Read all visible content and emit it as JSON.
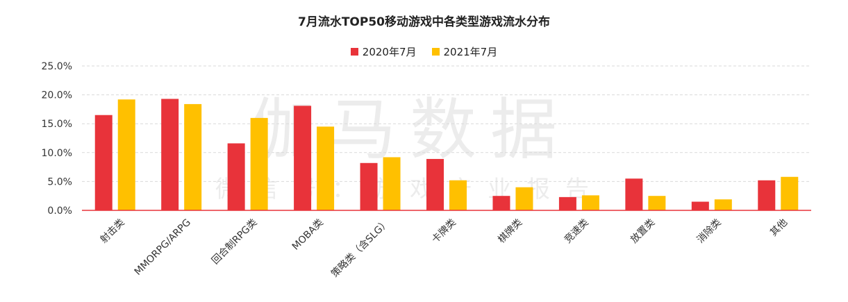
{
  "chart_data": {
    "type": "bar",
    "title": "7月流水TOP50移动游戏中各类型游戏流水分布",
    "categories": [
      "射击类",
      "MMORPG/ARPG",
      "回合制RPG类",
      "MOBA类",
      "策略类（含SLG）",
      "卡牌类",
      "棋牌类",
      "竞速类",
      "放置类",
      "消除类",
      "其他"
    ],
    "series": [
      {
        "name": "2020年7月",
        "color": "#E8333A",
        "values": [
          16.5,
          19.3,
          11.6,
          18.1,
          8.2,
          8.9,
          2.5,
          2.3,
          5.5,
          1.5,
          5.2
        ]
      },
      {
        "name": "2021年7月",
        "color": "#FFC000",
        "values": [
          19.2,
          18.4,
          16.0,
          14.5,
          9.2,
          5.2,
          4.0,
          2.6,
          2.5,
          1.9,
          5.8
        ]
      }
    ],
    "ylim": [
      0,
      25
    ],
    "yticks": [
      "0.0%",
      "5.0%",
      "10.0%",
      "15.0%",
      "20.0%",
      "25.0%"
    ],
    "ytick_values": [
      0,
      5,
      10,
      15,
      20,
      25
    ],
    "grid": true,
    "legend_position": "top-center",
    "xlabel": "",
    "ylabel": ""
  },
  "watermark": {
    "main": "伽马数据",
    "sub": "微信号：游戏产业报告"
  }
}
